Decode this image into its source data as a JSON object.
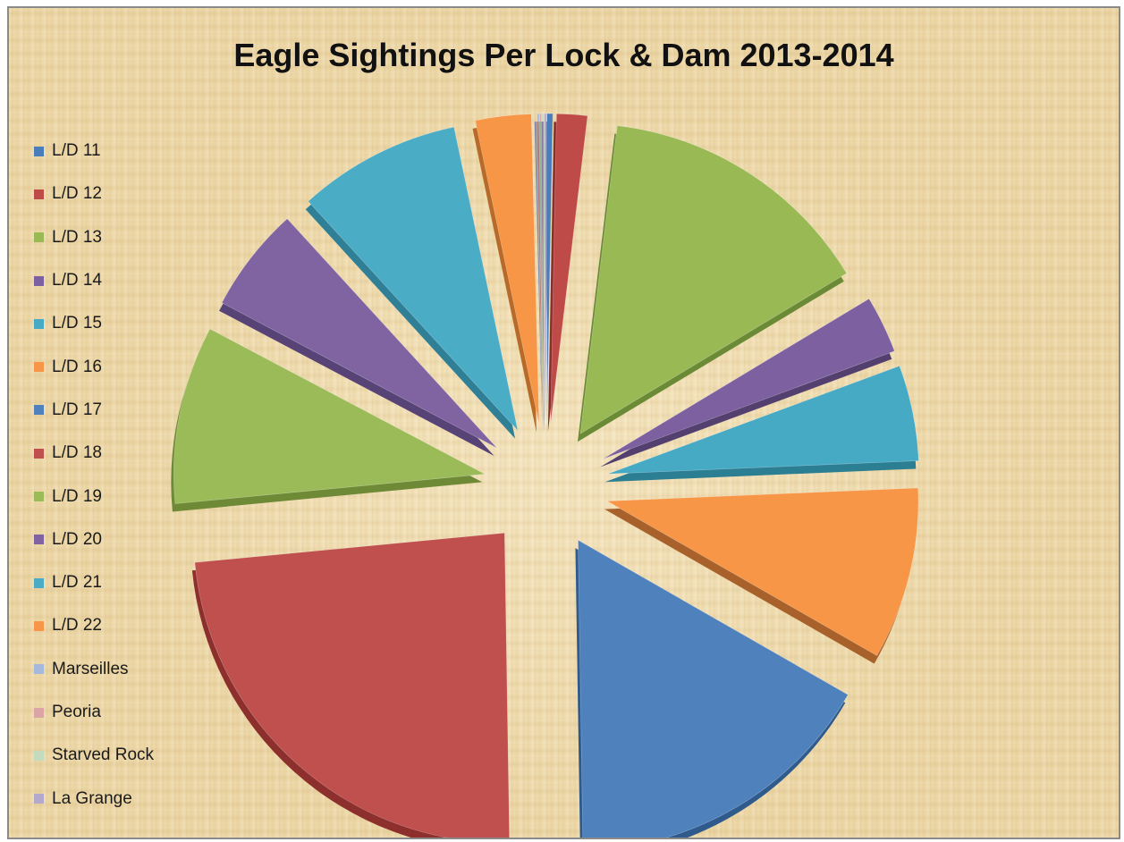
{
  "chart_data": {
    "type": "pie",
    "title": "Eagle Sightings Per Lock & Dam 2013-2014",
    "exploded": true,
    "legend_position": "left",
    "categories": [
      "L/D 11",
      "L/D 12",
      "L/D 13",
      "L/D 14",
      "L/D 15",
      "L/D 16",
      "L/D 17",
      "L/D 18",
      "L/D 19",
      "L/D 20",
      "L/D 21",
      "L/D 22",
      "Marseilles",
      "Peoria",
      "Starved Rock",
      "La Grange"
    ],
    "values": [
      0.3,
      1.6,
      14.5,
      3.0,
      5.0,
      9.0,
      16.5,
      23.8,
      9.3,
      5.5,
      8.5,
      2.9,
      0.1,
      0.1,
      0.1,
      0.1
    ],
    "colors": [
      "#4a7ebb",
      "#be4b48",
      "#98b954",
      "#7d60a0",
      "#46aac5",
      "#f79646",
      "#4f81bd",
      "#c0504d",
      "#9bbb59",
      "#8064a2",
      "#4bacc6",
      "#f79646",
      "#a5b9dc",
      "#dca5a5",
      "#c3dcc0",
      "#b4a8cc"
    ],
    "edge_colors": [
      "#2f5687",
      "#8a2e2c",
      "#6b8a36",
      "#54406f",
      "#2c7e93",
      "#a8612a",
      "#2f5a8c",
      "#8c2f2d",
      "#6f8a36",
      "#584377",
      "#2f7f96",
      "#b86a28",
      "#7d90b5",
      "#b07878",
      "#94b391",
      "#8a7ea6"
    ]
  }
}
